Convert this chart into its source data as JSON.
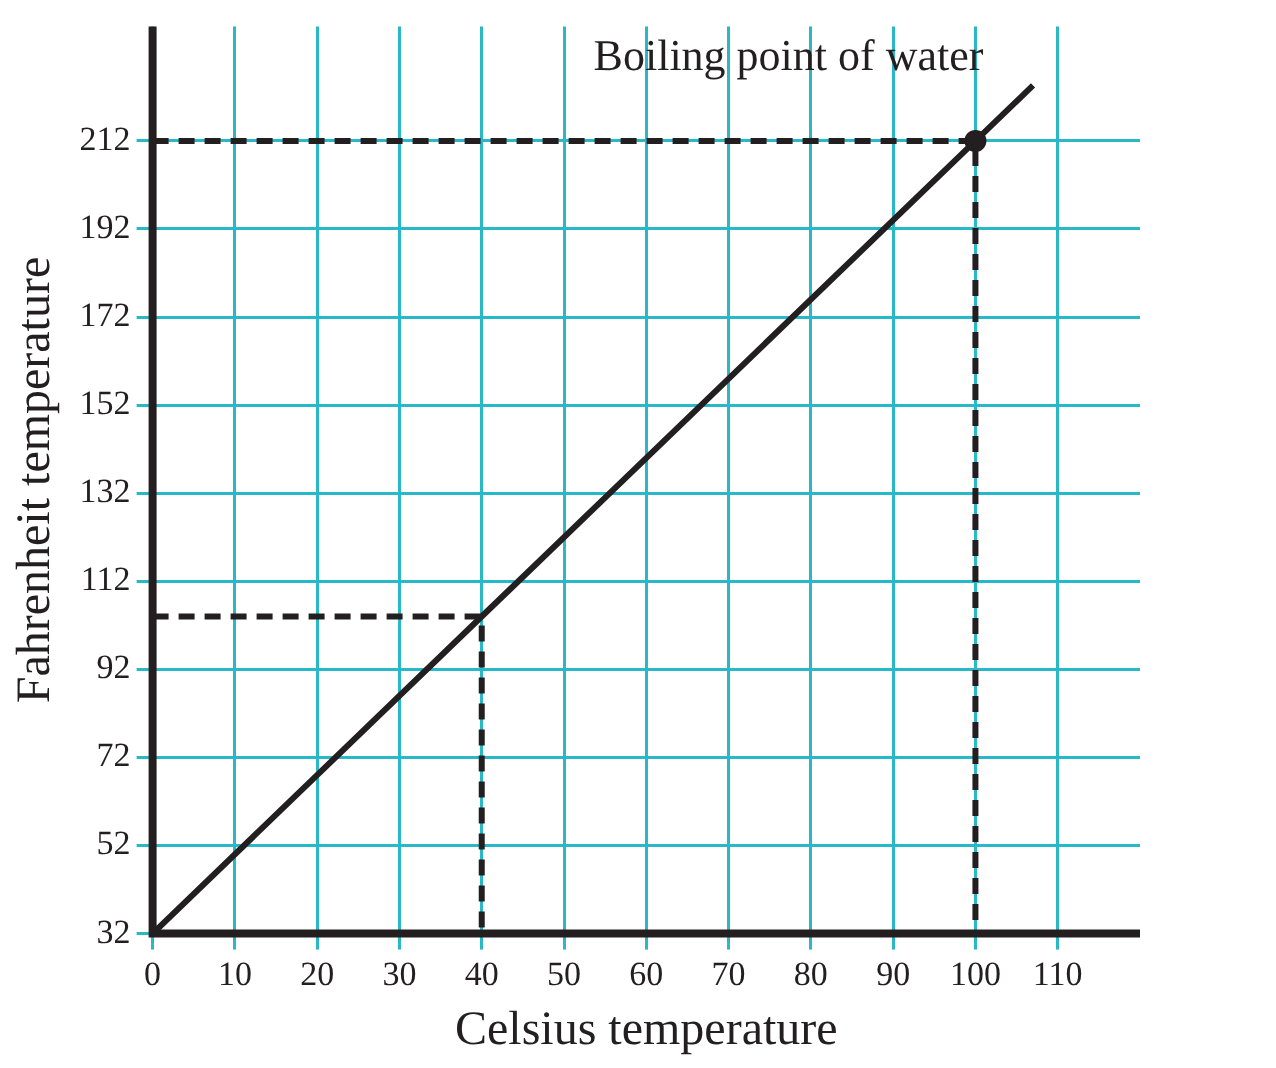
{
  "chart_data": {
    "type": "line",
    "xlabel": "Celsius temperature",
    "ylabel": "Fahrenheit temperature",
    "xlim": [
      0,
      120
    ],
    "xticks": [
      {
        "value": 0,
        "label": "0"
      },
      10,
      20,
      30,
      40,
      50,
      60,
      70,
      80,
      90,
      100,
      110
    ],
    "ylim": [
      32,
      238
    ],
    "yticks": [
      32,
      52,
      72,
      92,
      112,
      132,
      152,
      172,
      192,
      212
    ],
    "grid": true,
    "legend": false,
    "series": [
      {
        "color": "#231f20",
        "x": [
          0,
          40,
          100,
          107
        ],
        "values": [
          32,
          104,
          212,
          224.6
        ],
        "marker": "none",
        "line_style": "solid"
      },
      {
        "type": "line",
        "color": "#231f20",
        "x": [
          0,
          40,
          40
        ],
        "values": [
          104,
          104,
          32
        ],
        "marker": "none",
        "line_style": "dashed"
      },
      {
        "type": "line",
        "color": "#231f20",
        "x": [
          0,
          100,
          100
        ],
        "values": [
          212,
          212,
          32
        ],
        "marker": "none",
        "line_style": "dashed"
      },
      {
        "type": "scatter",
        "color": "#231f20",
        "x": [
          100
        ],
        "values": [
          212
        ],
        "marker": "circle"
      }
    ],
    "annotations": [
      {
        "text": "Boiling point of water",
        "x": 100,
        "y": 212
      }
    ]
  }
}
